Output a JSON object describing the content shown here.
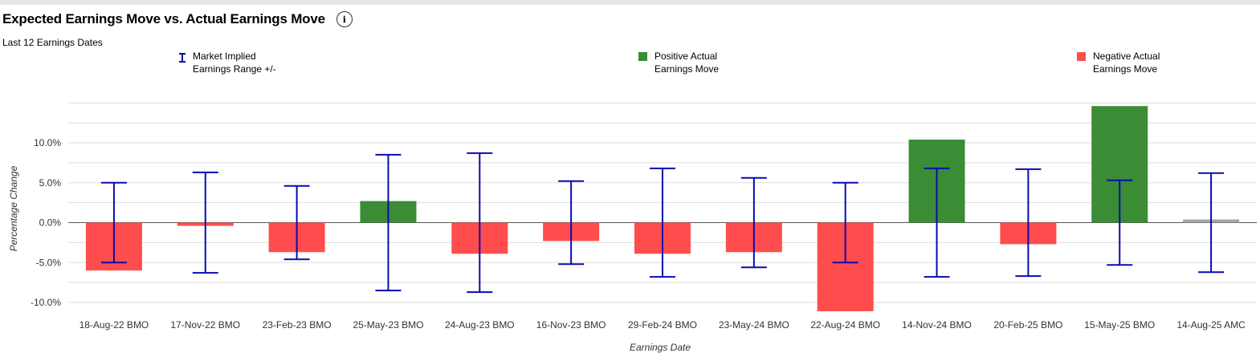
{
  "title": "Expected Earnings Move vs. Actual Earnings Move",
  "info_icon_glyph": "i",
  "subtitle": "Last 12 Earnings Dates",
  "legend": [
    {
      "label": "Market Implied\nEarnings Range +/-",
      "kind": "error-bar",
      "color": "#0a0ab0"
    },
    {
      "label": "Positive Actual\nEarnings Move",
      "kind": "swatch",
      "color": "#3a8c35"
    },
    {
      "label": "Negative Actual\nEarnings Move",
      "kind": "swatch",
      "color": "#ff4d4d"
    }
  ],
  "colors": {
    "positive": "#3a8c35",
    "negative": "#ff4d4d",
    "neutral": "#a6a6a6",
    "range": "#0a0ab0",
    "grid": "#dedede",
    "zero_line": "#555555"
  },
  "chart_data": {
    "type": "bar",
    "xlabel": "Earnings Date",
    "ylabel": "Percentage Change",
    "ylim": [
      -11.5,
      15
    ],
    "y_ticks": [
      -10,
      -5,
      0,
      5,
      10
    ],
    "y_tick_labels": [
      "-10.0%",
      "-5.0%",
      "0.0%",
      "5.0%",
      "10.0%"
    ],
    "grid": true,
    "categories": [
      "18-Aug-22 BMO",
      "17-Nov-22 BMO",
      "23-Feb-23 BMO",
      "25-May-23 BMO",
      "24-Aug-23 BMO",
      "16-Nov-23 BMO",
      "29-Feb-24 BMO",
      "23-May-24 BMO",
      "22-Aug-24 BMO",
      "14-Nov-24 BMO",
      "20-Feb-25 BMO",
      "15-May-25 BMO",
      "14-Aug-25 AMC"
    ],
    "series": [
      {
        "name": "Actual Earnings Move",
        "values": [
          -6.0,
          -0.4,
          -3.7,
          2.7,
          -3.9,
          -2.3,
          -3.9,
          -3.7,
          -11.1,
          10.4,
          -2.7,
          14.6,
          0.4
        ]
      },
      {
        "name": "Market Implied Earnings Range +/-",
        "values": [
          5.0,
          6.3,
          4.6,
          8.5,
          8.7,
          5.2,
          6.8,
          5.6,
          5.0,
          6.8,
          6.7,
          5.3,
          6.2
        ]
      }
    ]
  }
}
